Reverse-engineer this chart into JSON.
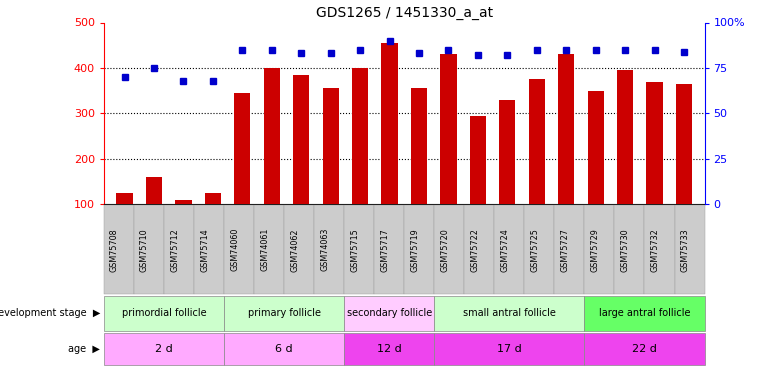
{
  "title": "GDS1265 / 1451330_a_at",
  "samples": [
    "GSM75708",
    "GSM75710",
    "GSM75712",
    "GSM75714",
    "GSM74060",
    "GSM74061",
    "GSM74062",
    "GSM74063",
    "GSM75715",
    "GSM75717",
    "GSM75719",
    "GSM75720",
    "GSM75722",
    "GSM75724",
    "GSM75725",
    "GSM75727",
    "GSM75729",
    "GSM75730",
    "GSM75732",
    "GSM75733"
  ],
  "counts": [
    125,
    160,
    110,
    125,
    345,
    400,
    385,
    355,
    400,
    455,
    355,
    430,
    295,
    330,
    375,
    430,
    350,
    395,
    370,
    365
  ],
  "percentiles": [
    70,
    75,
    68,
    68,
    85,
    85,
    83,
    83,
    85,
    90,
    83,
    85,
    82,
    82,
    85,
    85,
    85,
    85,
    85,
    84
  ],
  "bar_color": "#cc0000",
  "dot_color": "#0000cc",
  "ylim_left": [
    100,
    500
  ],
  "ylim_right": [
    0,
    100
  ],
  "yticks_left": [
    100,
    200,
    300,
    400,
    500
  ],
  "yticks_right": [
    0,
    25,
    50,
    75,
    100
  ],
  "ytick_labels_right": [
    "0",
    "25",
    "50",
    "75",
    "100%"
  ],
  "grid_lines": [
    200,
    300,
    400
  ],
  "groups": [
    {
      "label": "primordial follicle",
      "start": 0,
      "end": 4,
      "color": "#ccffcc"
    },
    {
      "label": "primary follicle",
      "start": 4,
      "end": 8,
      "color": "#ccffcc"
    },
    {
      "label": "secondary follicle",
      "start": 8,
      "end": 11,
      "color": "#ffccff"
    },
    {
      "label": "small antral follicle",
      "start": 11,
      "end": 16,
      "color": "#ccffcc"
    },
    {
      "label": "large antral follicle",
      "start": 16,
      "end": 20,
      "color": "#66ff66"
    }
  ],
  "ages": [
    {
      "label": "2 d",
      "start": 0,
      "end": 4,
      "color": "#ffaaff"
    },
    {
      "label": "6 d",
      "start": 4,
      "end": 8,
      "color": "#ffaaff"
    },
    {
      "label": "12 d",
      "start": 8,
      "end": 11,
      "color": "#ee44ee"
    },
    {
      "label": "17 d",
      "start": 11,
      "end": 16,
      "color": "#ee44ee"
    },
    {
      "label": "22 d",
      "start": 16,
      "end": 20,
      "color": "#ee44ee"
    }
  ],
  "tick_bg_color": "#cccccc",
  "bg_color": "#ffffff"
}
